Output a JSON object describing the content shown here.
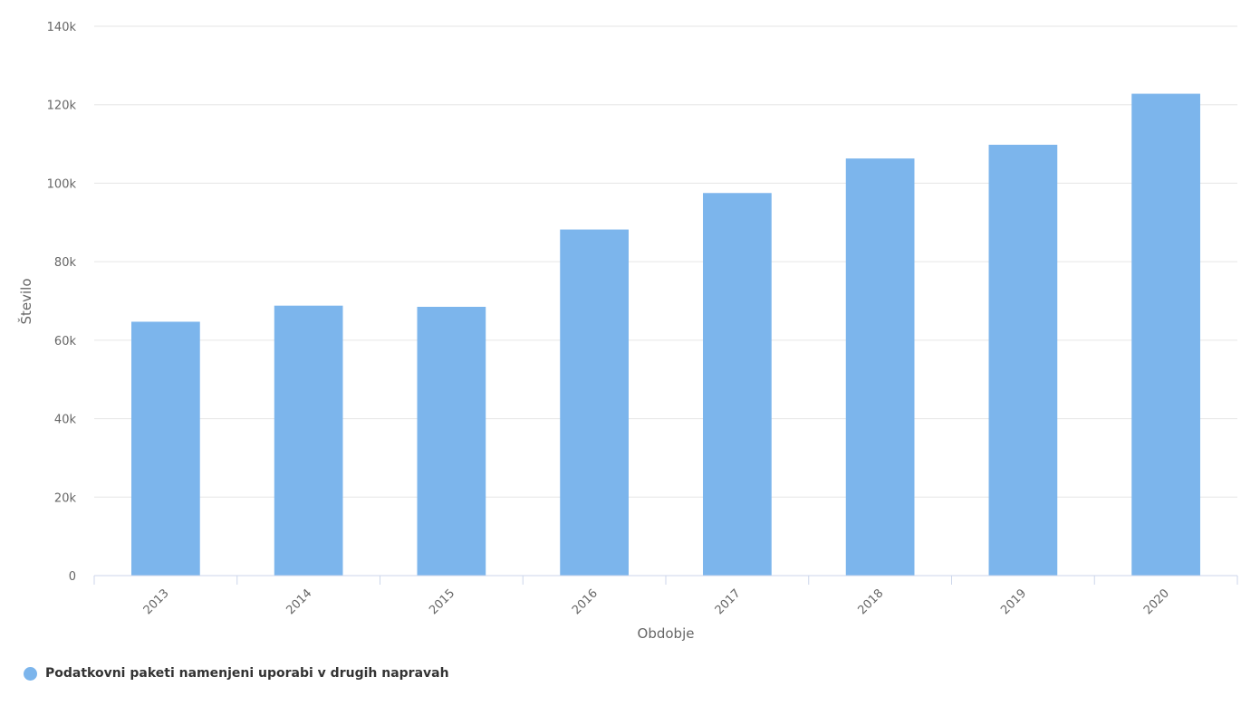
{
  "chart_data": {
    "type": "bar",
    "categories": [
      "2013",
      "2014",
      "2015",
      "2016",
      "2017",
      "2018",
      "2019",
      "2020"
    ],
    "series": [
      {
        "name": "Podatkovni paketi namenjeni uporabi v drugih napravah",
        "values": [
          64700,
          68800,
          68500,
          88200,
          97500,
          106300,
          109800,
          122800
        ],
        "color": "#7cb5ec"
      }
    ],
    "xlabel": "Obdobje",
    "ylabel": "Število",
    "ylim": [
      0,
      140000
    ],
    "yticks": [
      0,
      20000,
      40000,
      60000,
      80000,
      100000,
      120000,
      140000
    ],
    "ytick_labels": [
      "0",
      "20k",
      "40k",
      "60k",
      "80k",
      "100k",
      "120k",
      "140k"
    ],
    "grid": true,
    "legend_position": "bottom-left"
  }
}
